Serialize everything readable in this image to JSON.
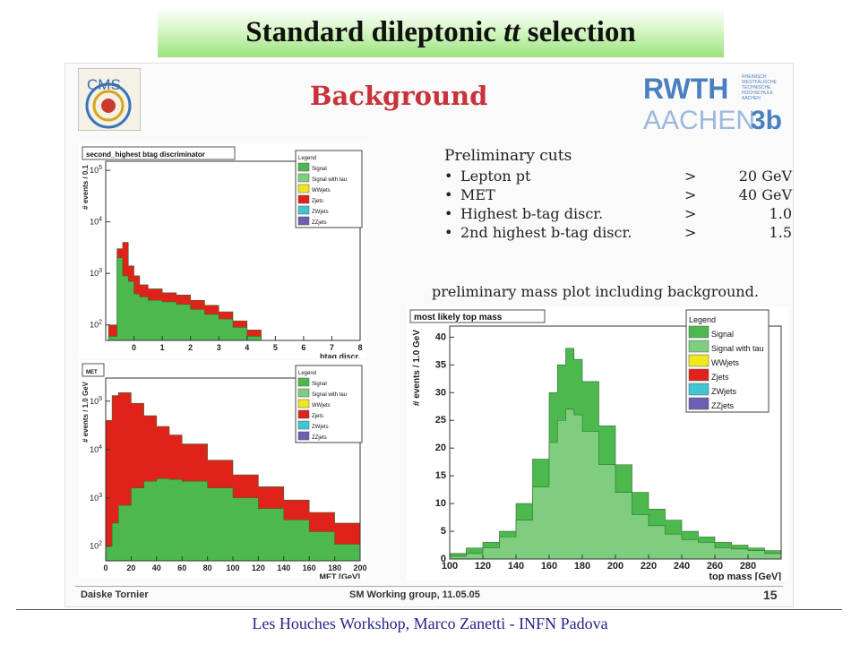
{
  "slide": {
    "title_pre": "Standard dileptonic ",
    "title_em": "tt",
    "title_post": " selection",
    "footer": "Les Houches Workshop,    Marco Zanetti - INFN Padova"
  },
  "inner": {
    "heading": "Background",
    "cms_logo": "CMS",
    "rwth_logo": "RWTH AACHEN 3b",
    "rwth_small": [
      "RHEINISCH",
      "WESTFÄLISCHE",
      "TECHNISCHE",
      "HOCHSCHULE",
      "AACHEN"
    ],
    "cuts_title": "Preliminary cuts",
    "cuts": [
      {
        "bullet": "•",
        "name": "Lepton pt",
        "op": ">",
        "value": "20 GeV"
      },
      {
        "bullet": "•",
        "name": "MET",
        "op": ">",
        "value": "40 GeV"
      },
      {
        "bullet": "•",
        "name": "Highest b-tag discr.",
        "op": ">",
        "value": "1.0"
      },
      {
        "bullet": "•",
        "name": "2nd highest b-tag discr.",
        "op": ">",
        "value": "1.5"
      }
    ],
    "mass_caption": "preliminary mass plot including background.",
    "footer_left": "Daiske Tornier",
    "footer_mid": "SM Working group, 11.05.05",
    "footer_right": "15"
  },
  "colors": {
    "signal": "#4db84d",
    "signal_tau": "#7fce7f",
    "wwjets": "#f0e81e",
    "zjets": "#e0231a",
    "zwjets": "#3fc6d0",
    "zzjets": "#6a5fb0"
  },
  "chart_data": [
    {
      "type": "area",
      "title": "second_highest btag discriminator",
      "xlabel": "btag discr.",
      "ylabel": "# events / 0.1",
      "ylog": true,
      "xlim": [
        -1,
        8
      ],
      "yticks": [
        "10^2",
        "10^3",
        "10^4",
        "10^5"
      ],
      "xticks": [
        "0",
        "1",
        "2",
        "3",
        "4",
        "5",
        "6",
        "7",
        "8"
      ],
      "legend_title": "Legend",
      "legend": [
        "Signal",
        "Signal with tau",
        "WWjets",
        "Zjets",
        "ZWjets",
        "ZZjets"
      ],
      "x": [
        -0.9,
        -0.6,
        -0.4,
        -0.2,
        0,
        0.2,
        0.5,
        1,
        1.5,
        2,
        2.5,
        3,
        3.5,
        4,
        4.5,
        5
      ],
      "series": [
        {
          "name": "Signal",
          "values": [
            60,
            2000,
            900,
            700,
            400,
            350,
            300,
            280,
            250,
            200,
            160,
            130,
            90,
            60,
            30,
            5
          ]
        },
        {
          "name": "Zjets",
          "values": [
            100,
            3000,
            4000,
            1400,
            900,
            600,
            500,
            420,
            380,
            300,
            240,
            180,
            120,
            80,
            40,
            5
          ]
        }
      ]
    },
    {
      "type": "area",
      "title": "MET",
      "xlabel": "MET [GeV]",
      "ylabel": "# events / 1.0 GeV",
      "ylog": true,
      "xlim": [
        0,
        200
      ],
      "yticks": [
        "10^2",
        "10^3",
        "10^4",
        "10^5"
      ],
      "xticks": [
        "0",
        "20",
        "40",
        "60",
        "80",
        "100",
        "120",
        "140",
        "160",
        "180",
        "200"
      ],
      "legend_title": "Legend",
      "legend": [
        "Signal",
        "Signal with tau",
        "WWjets",
        "Zjets",
        "ZWjets",
        "ZZjets"
      ],
      "x": [
        0,
        5,
        10,
        20,
        30,
        40,
        50,
        60,
        80,
        100,
        120,
        140,
        160,
        180,
        200
      ],
      "series": [
        {
          "name": "Signal",
          "values": [
            100,
            300,
            700,
            1600,
            2200,
            2500,
            2400,
            2200,
            1600,
            1000,
            600,
            350,
            200,
            110,
            60
          ]
        },
        {
          "name": "Zjets",
          "values": [
            40000,
            130000,
            150000,
            90000,
            50000,
            30000,
            20000,
            13000,
            6000,
            3000,
            1700,
            900,
            500,
            300,
            200
          ]
        }
      ]
    },
    {
      "type": "area",
      "title": "most likely top mass",
      "xlabel": "top mass [GeV]",
      "ylabel": "# events / 1.0 GeV",
      "xlim": [
        100,
        300
      ],
      "ylim": [
        0,
        42
      ],
      "yticks": [
        "0",
        "5",
        "10",
        "15",
        "20",
        "25",
        "30",
        "35",
        "40"
      ],
      "xticks": [
        "100",
        "120",
        "140",
        "160",
        "180",
        "200",
        "220",
        "240",
        "260",
        "280"
      ],
      "legend_title": "Legend",
      "legend": [
        "Signal",
        "Signal with tau",
        "WWjets",
        "Zjets",
        "ZWjets",
        "ZZjets"
      ],
      "x": [
        100,
        110,
        120,
        130,
        140,
        150,
        160,
        165,
        170,
        175,
        180,
        190,
        200,
        210,
        220,
        230,
        240,
        250,
        260,
        270,
        280,
        290,
        300
      ],
      "series": [
        {
          "name": "Signal",
          "values": [
            1,
            2,
            3,
            5,
            10,
            18,
            30,
            35,
            38,
            36,
            32,
            24,
            17,
            12,
            9,
            7,
            5,
            4,
            3,
            2.5,
            2,
            1.5,
            1
          ]
        },
        {
          "name": "Signal with tau",
          "values": [
            0.5,
            1,
            2,
            4,
            7,
            13,
            21,
            25,
            27,
            26,
            23,
            17,
            12,
            8,
            6,
            4.5,
            3.5,
            3,
            2,
            1.8,
            1.5,
            1,
            0.5
          ]
        }
      ]
    }
  ]
}
